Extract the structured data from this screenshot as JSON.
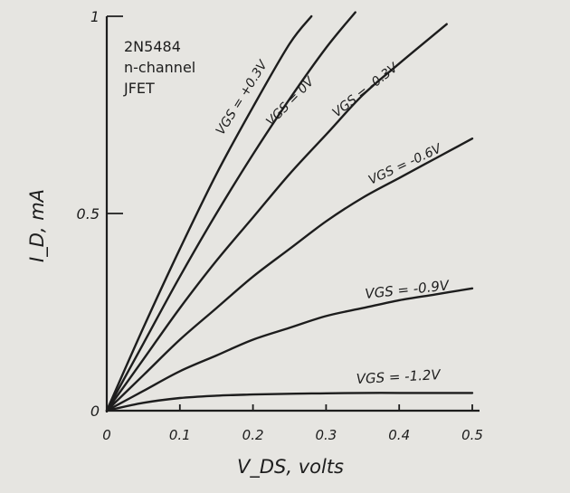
{
  "chart_data": {
    "type": "line",
    "title": "",
    "annotation_lines": [
      "2N5484",
      "n-channel",
      "JFET"
    ],
    "xlabel": "V_DS, volts",
    "ylabel": "I_D, mA",
    "xlim": [
      0,
      0.5
    ],
    "ylim": [
      0,
      1
    ],
    "x_ticks": [
      {
        "value": 0,
        "label": "0"
      },
      {
        "value": 0.1,
        "label": "0.1"
      },
      {
        "value": 0.2,
        "label": "0.2"
      },
      {
        "value": 0.3,
        "label": "0.3"
      },
      {
        "value": 0.4,
        "label": "0.4"
      },
      {
        "value": 0.5,
        "label": "0.5"
      }
    ],
    "y_ticks": [
      {
        "value": 0,
        "label": "0"
      },
      {
        "value": 0.5,
        "label": "0.5"
      },
      {
        "value": 1,
        "label": "1"
      }
    ],
    "grid": false,
    "legend": "none",
    "series": [
      {
        "name": "V_GS = +0.3V",
        "x": [
          0,
          0.05,
          0.1,
          0.15,
          0.2,
          0.25,
          0.28
        ],
        "y": [
          0,
          0.21,
          0.41,
          0.6,
          0.77,
          0.93,
          1.0
        ]
      },
      {
        "name": "V_GS = 0V",
        "x": [
          0,
          0.05,
          0.1,
          0.15,
          0.2,
          0.25,
          0.3,
          0.34
        ],
        "y": [
          0,
          0.17,
          0.34,
          0.5,
          0.65,
          0.79,
          0.92,
          1.01
        ]
      },
      {
        "name": "V_GS = -0.3V",
        "x": [
          0,
          0.05,
          0.1,
          0.15,
          0.2,
          0.25,
          0.3,
          0.35,
          0.4,
          0.465
        ],
        "y": [
          0,
          0.13,
          0.26,
          0.38,
          0.49,
          0.6,
          0.7,
          0.8,
          0.88,
          0.98
        ]
      },
      {
        "name": "V_GS = -0.6V",
        "x": [
          0,
          0.05,
          0.1,
          0.15,
          0.2,
          0.25,
          0.3,
          0.35,
          0.4,
          0.45,
          0.5
        ],
        "y": [
          0,
          0.09,
          0.18,
          0.26,
          0.34,
          0.41,
          0.48,
          0.54,
          0.59,
          0.64,
          0.69
        ]
      },
      {
        "name": "V_GS = -0.9V",
        "x": [
          0,
          0.05,
          0.1,
          0.15,
          0.2,
          0.25,
          0.3,
          0.35,
          0.4,
          0.45,
          0.5
        ],
        "y": [
          0,
          0.05,
          0.1,
          0.14,
          0.18,
          0.21,
          0.24,
          0.26,
          0.28,
          0.295,
          0.31
        ]
      },
      {
        "name": "V_GS = -1.2V",
        "x": [
          0,
          0.05,
          0.1,
          0.15,
          0.2,
          0.25,
          0.3,
          0.35,
          0.4,
          0.45,
          0.5
        ],
        "y": [
          0,
          0.02,
          0.032,
          0.038,
          0.041,
          0.043,
          0.044,
          0.045,
          0.045,
          0.045,
          0.045
        ]
      }
    ],
    "curve_labels": [
      {
        "series": "V_GS = +0.3V",
        "text": "VGS = +0.3V"
      },
      {
        "series": "V_GS = 0V",
        "text": "VGS = 0V"
      },
      {
        "series": "V_GS = -0.3V",
        "text": "VGS = -0.3V"
      },
      {
        "series": "V_GS = -0.6V",
        "text": "VGS = -0.6V"
      },
      {
        "series": "V_GS = -0.9V",
        "text": "VGS = -0.9V"
      },
      {
        "series": "V_GS = -1.2V",
        "text": "VGS = -1.2V"
      }
    ],
    "colors": {
      "ink": "#1d1d1d",
      "paper": "#e6e5e1"
    }
  }
}
